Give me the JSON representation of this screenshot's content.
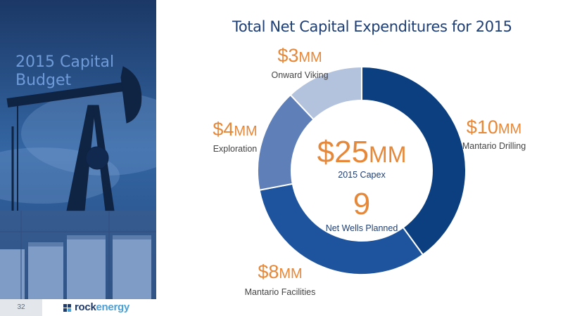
{
  "slide": {
    "sidebar_title": "2015 Capital Budget",
    "page_number": "32",
    "logo": {
      "bold": "rock",
      "light": "energy"
    }
  },
  "chart_data": {
    "type": "pie",
    "donut": true,
    "title": "Total Net Capital Expenditures for 2015",
    "unit": "$MM",
    "slices": [
      {
        "label": "Mantario Drilling",
        "value": 10,
        "value_number": "$10",
        "value_suffix": "MM",
        "color": "#0b3f7f"
      },
      {
        "label": "Mantario Facilities",
        "value": 8,
        "value_number": "$8",
        "value_suffix": "MM",
        "color": "#1e549d"
      },
      {
        "label": "Exploration",
        "value": 4,
        "value_number": "$4",
        "value_suffix": "MM",
        "color": "#5f7fb8"
      },
      {
        "label": "Onward Viking",
        "value": 3,
        "value_number": "$3",
        "value_suffix": "MM",
        "color": "#b3c2dd"
      }
    ],
    "center": {
      "total_number": "$25",
      "total_suffix": "MM",
      "total_label": "2015 Capex",
      "wells_number": "9",
      "wells_label": "Net Wells Planned"
    },
    "colors": {
      "value_text": "#e6883a",
      "label_text": "#444444",
      "center_label": "#1f3e73"
    }
  }
}
